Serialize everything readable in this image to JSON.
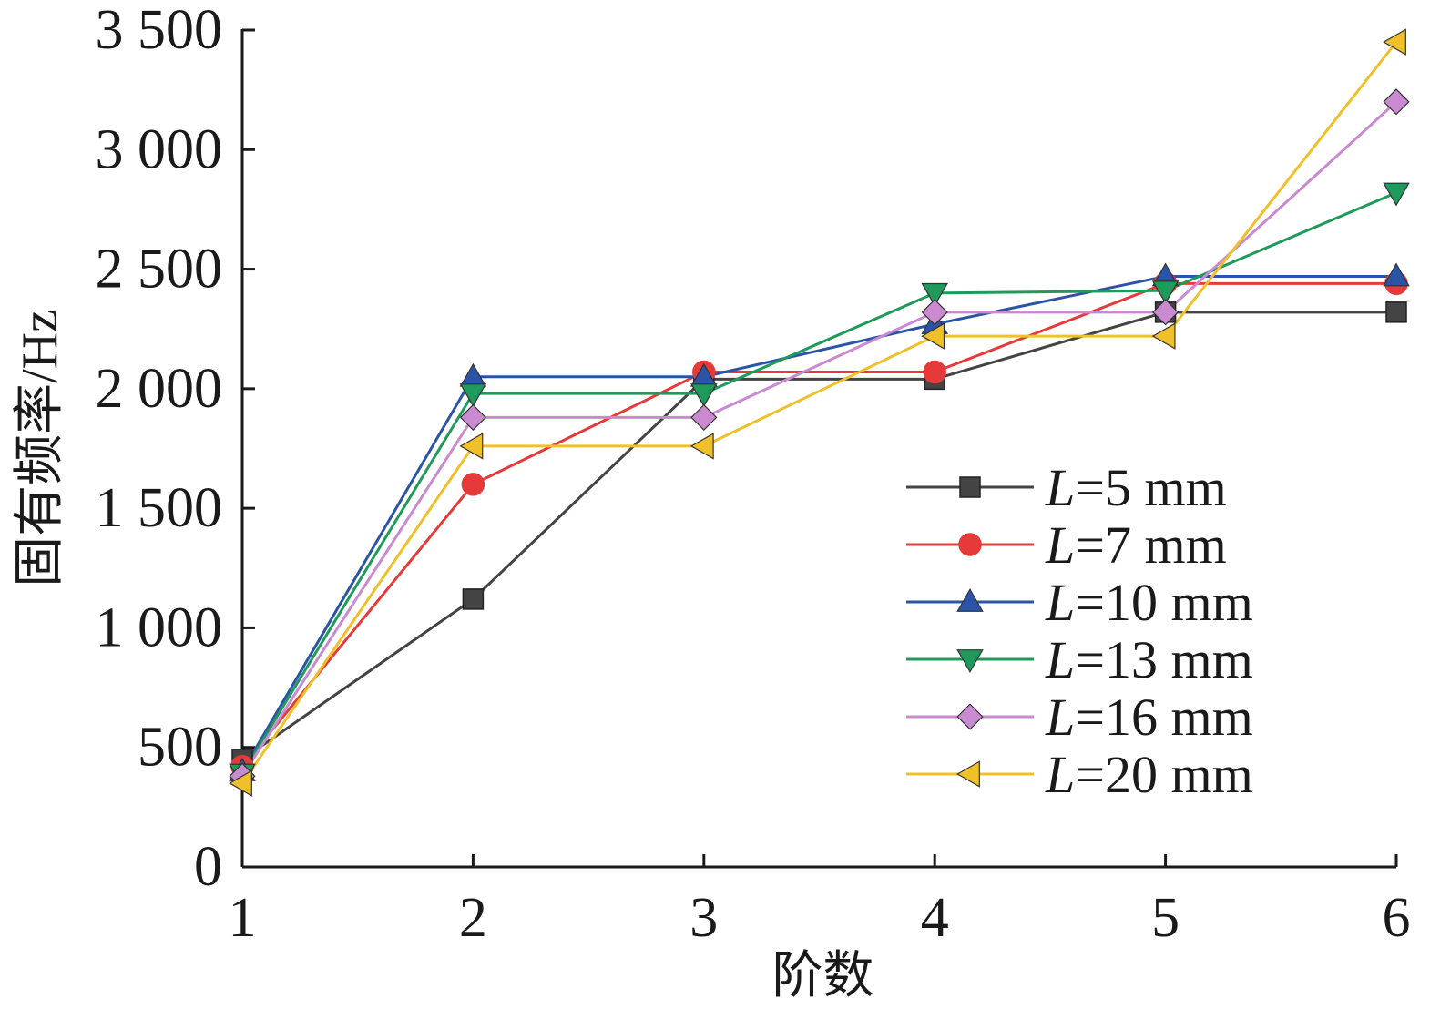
{
  "chart_data": {
    "type": "line",
    "xlabel": "阶数",
    "ylabel": "固有频率/Hz",
    "x": [
      1,
      2,
      3,
      4,
      5,
      6
    ],
    "x_tick_labels": [
      "1",
      "2",
      "3",
      "4",
      "5",
      "6"
    ],
    "xlim": [
      1,
      6
    ],
    "ylim": [
      0,
      3500
    ],
    "y_ticks": [
      0,
      500,
      1000,
      1500,
      2000,
      2500,
      3000,
      3500
    ],
    "y_tick_labels": [
      "0",
      "500",
      "1 000",
      "1 500",
      "2 000",
      "2 500",
      "3 000",
      "3 500"
    ],
    "grid": false,
    "legend_position": "right",
    "series": [
      {
        "name_prefix": "L",
        "name_suffix": "=5 mm",
        "color": "#444444",
        "marker": "square",
        "values": [
          450,
          1120,
          2040,
          2040,
          2320,
          2320
        ]
      },
      {
        "name_prefix": "L",
        "name_suffix": "=7 mm",
        "color": "#e63a3a",
        "marker": "circle",
        "values": [
          420,
          1600,
          2070,
          2070,
          2440,
          2440
        ]
      },
      {
        "name_prefix": "L",
        "name_suffix": "=10 mm",
        "color": "#2b54a6",
        "marker": "triangle-up",
        "values": [
          400,
          2050,
          2050,
          2270,
          2470,
          2470
        ]
      },
      {
        "name_prefix": "L",
        "name_suffix": "=13 mm",
        "color": "#1f9a5a",
        "marker": "triangle-down",
        "values": [
          390,
          1980,
          1980,
          2400,
          2410,
          2820
        ]
      },
      {
        "name_prefix": "L",
        "name_suffix": "=16 mm",
        "color": "#c98ad0",
        "marker": "diamond",
        "values": [
          380,
          1880,
          1880,
          2320,
          2320,
          3200
        ]
      },
      {
        "name_prefix": "L",
        "name_suffix": "=20 mm",
        "color": "#f0c02a",
        "marker": "triangle-left",
        "values": [
          350,
          1760,
          1760,
          2220,
          2220,
          3450
        ]
      }
    ]
  }
}
